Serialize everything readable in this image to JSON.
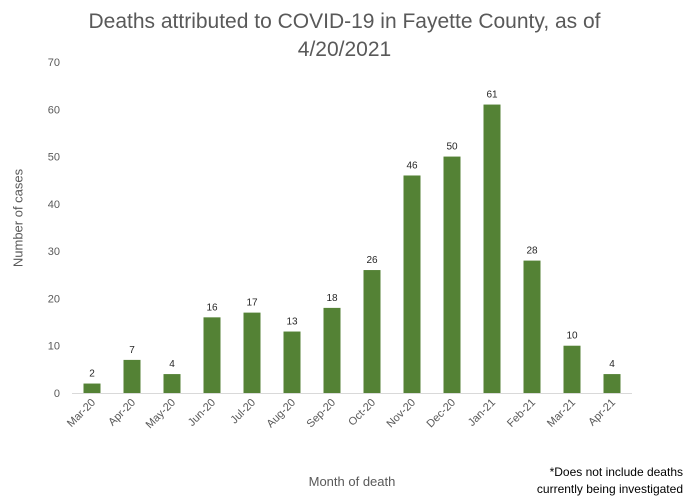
{
  "chart_data": {
    "type": "bar",
    "title_lines": [
      "Deaths attributed to COVID-19 in Fayette County, as of",
      "4/20/2021"
    ],
    "xlabel": "Month of death",
    "ylabel": "Number of cases",
    "categories": [
      "Mar-20",
      "Apr-20",
      "May-20",
      "Jun-20",
      "Jul-20",
      "Aug-20",
      "Sep-20",
      "Oct-20",
      "Nov-20",
      "Dec-20",
      "Jan-21",
      "Feb-21",
      "Mar-21",
      "Apr-21"
    ],
    "values": [
      2,
      7,
      4,
      16,
      17,
      13,
      18,
      26,
      46,
      50,
      61,
      28,
      10,
      4
    ],
    "ylim": [
      0,
      70
    ],
    "yticks": [
      0,
      10,
      20,
      30,
      40,
      50,
      60,
      70
    ],
    "grid": false,
    "data_labels": true,
    "bar_color": "#548235",
    "footnote_lines": [
      "*Does not include deaths",
      "currently being investigated"
    ]
  }
}
